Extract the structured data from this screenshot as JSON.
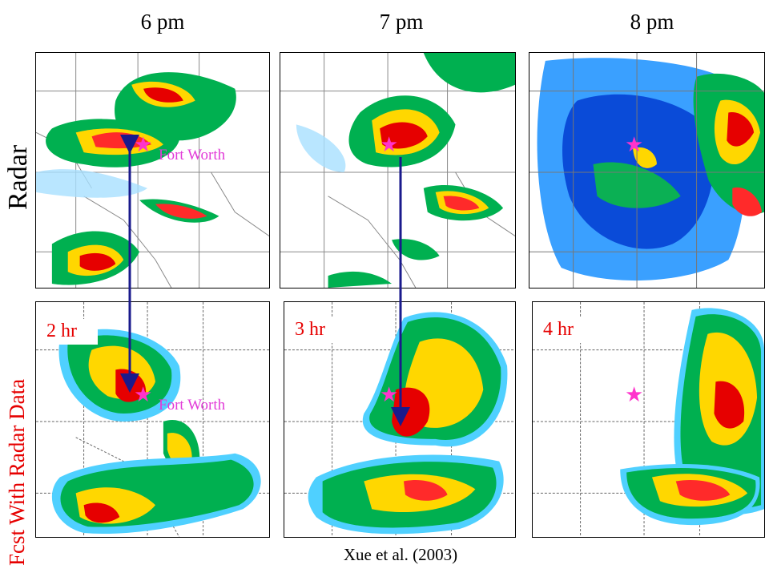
{
  "columns": [
    {
      "title": "6 pm"
    },
    {
      "title": "7 pm"
    },
    {
      "title": "8 pm"
    }
  ],
  "rows": {
    "top_label": "Radar",
    "bottom_label": "Fcst With Radar Data"
  },
  "forecast_leads": [
    "2 hr",
    "3 hr",
    "4 hr"
  ],
  "city_label": "Fort Worth",
  "citation": "Xue et al. (2003)",
  "colors": {
    "row_label_top": "#000000",
    "row_label_bottom": "#e60000",
    "star": "#ff33cc",
    "arrow": "#1a1a8c"
  }
}
